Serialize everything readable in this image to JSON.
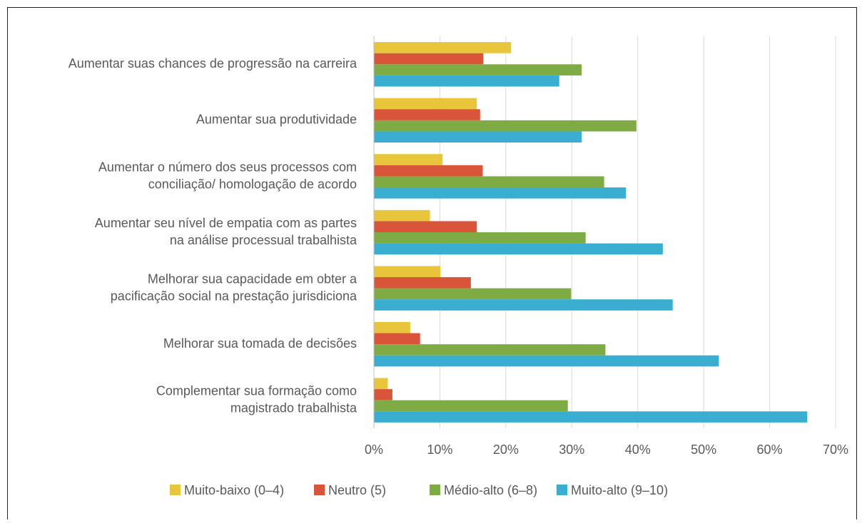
{
  "chart_data": {
    "type": "barh",
    "categories": [
      "Aumentar suas chances de progressão na carreira",
      "Aumentar sua produtividade",
      "Aumentar o número dos seus processos com\nconciliação/ homologação de acordo",
      "Aumentar seu nível de empatia com as partes\nna análise processual trabalhista",
      "Melhorar sua capacidade em obter a\npacificação social na prestação jurisdiciona",
      "Melhorar sua tomada de decisões",
      "Complementar sua formação como\nmagistrado trabalhista"
    ],
    "series": [
      {
        "name": "Muito-baixo (0–4)",
        "color": "#e8c53a",
        "values": [
          20.8,
          15.6,
          10.4,
          8.5,
          10.1,
          5.5,
          2.1
        ]
      },
      {
        "name": "Neutro (5)",
        "color": "#d9553a",
        "values": [
          16.6,
          16.1,
          16.5,
          15.6,
          14.7,
          7.0,
          2.8
        ]
      },
      {
        "name": "Médio-alto (6–8)",
        "color": "#7fab45",
        "values": [
          31.5,
          39.8,
          34.9,
          32.1,
          29.9,
          35.1,
          29.4
        ]
      },
      {
        "name": "Muito-alto (9–10)",
        "color": "#3aaed0",
        "values": [
          28.1,
          31.5,
          38.2,
          43.8,
          45.3,
          52.3,
          65.7
        ]
      }
    ],
    "xlim": [
      0,
      70
    ],
    "xticks": [
      {
        "value": 0,
        "label": "0%"
      },
      {
        "value": 10,
        "label": "10%"
      },
      {
        "value": 20,
        "label": "20%"
      },
      {
        "value": 30,
        "label": "30%"
      },
      {
        "value": 40,
        "label": "40%"
      },
      {
        "value": 50,
        "label": "50%"
      },
      {
        "value": 60,
        "label": "60%"
      },
      {
        "value": 70,
        "label": "70%"
      }
    ],
    "grid": true,
    "legend": "bottom"
  }
}
